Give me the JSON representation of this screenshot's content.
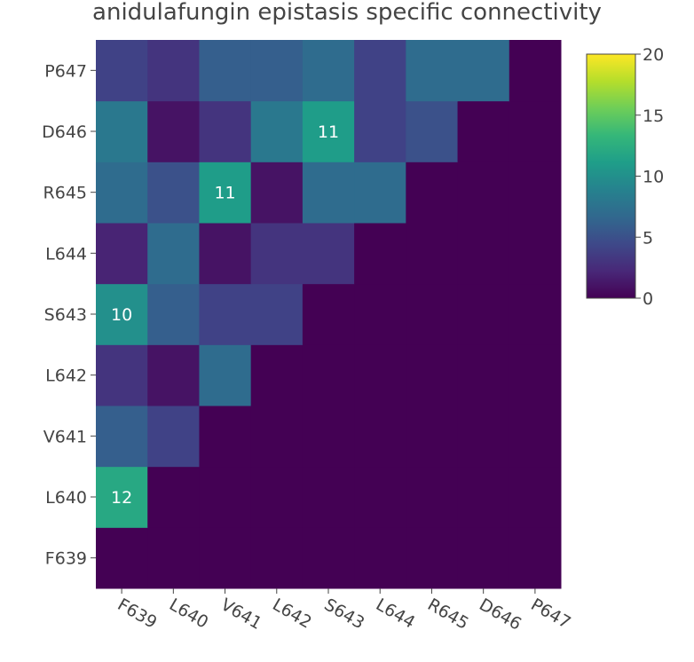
{
  "chart_data": {
    "type": "heatmap",
    "title": "anidulafungin epistasis specific connectivity",
    "xlabel": "",
    "ylabel": "",
    "x_categories": [
      "F639",
      "L640",
      "V641",
      "L642",
      "S643",
      "L644",
      "R645",
      "D646",
      "P647"
    ],
    "y_categories": [
      "F639",
      "L640",
      "V641",
      "L642",
      "S643",
      "L644",
      "R645",
      "D646",
      "P647"
    ],
    "z": [
      [
        0,
        0,
        0,
        0,
        0,
        0,
        0,
        0,
        0
      ],
      [
        12,
        0,
        0,
        0,
        0,
        0,
        0,
        0,
        0
      ],
      [
        6,
        4,
        0,
        0,
        0,
        0,
        0,
        0,
        0
      ],
      [
        3,
        1,
        7,
        0,
        0,
        0,
        0,
        0,
        0
      ],
      [
        10,
        6,
        4,
        4,
        0,
        0,
        0,
        0,
        0
      ],
      [
        2,
        7,
        1,
        3,
        3,
        0,
        0,
        0,
        0
      ],
      [
        7,
        5,
        11,
        1,
        7,
        7,
        0,
        0,
        0
      ],
      [
        8,
        1,
        3,
        8,
        11,
        4,
        5,
        0,
        0
      ],
      [
        4,
        3,
        6,
        6,
        7,
        4,
        7,
        7,
        0
      ]
    ],
    "annotations": [
      {
        "x": "F639",
        "y": "L640",
        "text": "12"
      },
      {
        "x": "F639",
        "y": "S643",
        "text": "10"
      },
      {
        "x": "V641",
        "y": "R645",
        "text": "11"
      },
      {
        "x": "S643",
        "y": "D646",
        "text": "11"
      }
    ],
    "colorscale": "viridis",
    "zmin": 0,
    "zmax": 20,
    "colorbar_ticks": [
      "0",
      "5",
      "10",
      "15",
      "20"
    ],
    "grid": false
  }
}
